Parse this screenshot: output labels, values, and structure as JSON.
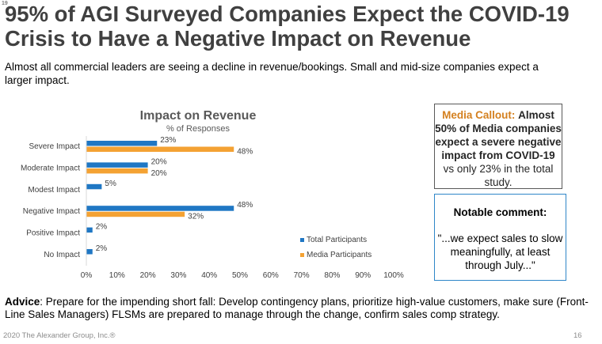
{
  "slide": {
    "corner_mark": "19",
    "title": "95% of AGI Surveyed Companies Expect the COVID-19 Crisis to Have a Negative Impact on Revenue",
    "subtitle": "Almost all commercial leaders are seeing a decline in revenue/bookings. Small and mid-size companies expect a larger impact.",
    "callout": {
      "accent": "Media Callout:",
      "bold1": "Almost 50% of Media companies expect a severe negative impact from COVID-19",
      "rest": "vs only 23% in the total study."
    },
    "comment": {
      "heading": "Notable comment:",
      "quote": "\"...we expect sales to slow meaningfully, at least through July...\""
    },
    "advice": {
      "label": "Advice",
      "text": ": Prepare for the impending short fall: Develop contingency plans, prioritize high-value customers, make sure (Front-Line Sales Managers) FLSMs are prepared to manage through the change, confirm sales comp strategy."
    },
    "footer": {
      "copyright": "2020 The Alexander Group, Inc.®",
      "page_number": "16"
    }
  },
  "colors": {
    "total": "#1f77c4",
    "media": "#f4a233"
  },
  "chart_data": {
    "type": "bar",
    "orientation": "horizontal",
    "title": "Impact on Revenue",
    "subtitle": "% of Responses",
    "categories": [
      "Severe Impact",
      "Moderate Impact",
      "Modest Impact",
      "Negative Impact",
      "Positive Impact",
      "No Impact"
    ],
    "series": [
      {
        "name": "Total Participants",
        "values": [
          23,
          20,
          5,
          48,
          2,
          2
        ],
        "labels": [
          "23%",
          "20%",
          "5%",
          "48%",
          "2%",
          "2%"
        ]
      },
      {
        "name": "Media Participants",
        "values": [
          48,
          20,
          null,
          32,
          null,
          null
        ],
        "labels": [
          "48%",
          "20%",
          "",
          "32%",
          "",
          ""
        ]
      }
    ],
    "xlim": [
      0,
      100
    ],
    "xticks": [
      0,
      10,
      20,
      30,
      40,
      50,
      60,
      70,
      80,
      90,
      100
    ],
    "xtick_labels": [
      "0%",
      "10%",
      "20%",
      "30%",
      "40%",
      "50%",
      "60%",
      "70%",
      "80%",
      "90%",
      "100%"
    ],
    "legend": "right"
  }
}
